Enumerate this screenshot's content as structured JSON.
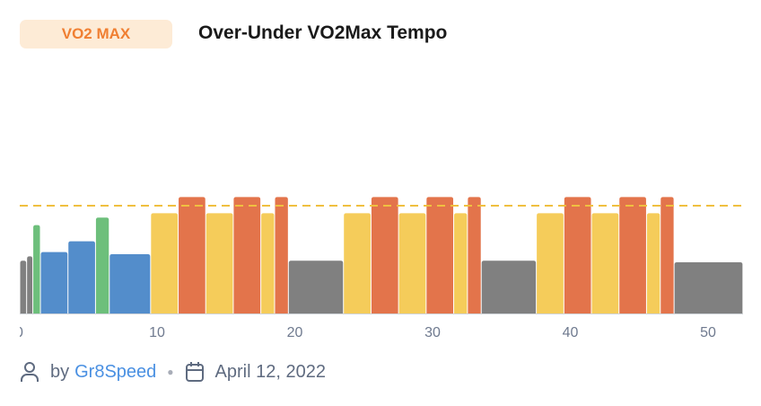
{
  "badge": "VO2 MAX",
  "title": "Over-Under VO2Max Tempo",
  "footer": {
    "by": "by",
    "author": "Gr8Speed",
    "date": "April 12, 2022",
    "icons": [
      "user-icon",
      "calendar-icon"
    ]
  },
  "colors": {
    "badge_bg": "#fdebd6",
    "badge_text": "#f07f32",
    "link": "#4a90e2",
    "threshold": "#f0c040"
  },
  "chart_data": {
    "type": "bar",
    "xlim": [
      0,
      52.5
    ],
    "ylim": [
      0,
      115
    ],
    "threshold": 100,
    "xticks": [
      "0",
      "10",
      "20",
      "30",
      "40",
      "50"
    ],
    "xtick_values": [
      0,
      10,
      20,
      30,
      40,
      50
    ],
    "colors": {
      "gray": "#808080",
      "green": "#6dbf7b",
      "blue": "#538dcb",
      "yellow": "#f5cc5a",
      "red": "#e3744b"
    },
    "segments": [
      {
        "start": 0,
        "end": 0.5,
        "value": 49,
        "color": "gray"
      },
      {
        "start": 0.5,
        "end": 0.95,
        "value": 53,
        "color": "gray"
      },
      {
        "start": 0.95,
        "end": 1.5,
        "value": 82,
        "color": "green"
      },
      {
        "start": 1.5,
        "end": 3.5,
        "value": 57,
        "color": "blue"
      },
      {
        "start": 3.5,
        "end": 5.5,
        "value": 67,
        "color": "blue"
      },
      {
        "start": 5.5,
        "end": 6.5,
        "value": 89,
        "color": "green"
      },
      {
        "start": 6.5,
        "end": 9.5,
        "value": 55,
        "color": "blue"
      },
      {
        "start": 9.5,
        "end": 11.5,
        "value": 93,
        "color": "yellow"
      },
      {
        "start": 11.5,
        "end": 13.5,
        "value": 108,
        "color": "red"
      },
      {
        "start": 13.5,
        "end": 15.5,
        "value": 93,
        "color": "yellow"
      },
      {
        "start": 15.5,
        "end": 17.5,
        "value": 108,
        "color": "red"
      },
      {
        "start": 17.5,
        "end": 18.5,
        "value": 93,
        "color": "yellow"
      },
      {
        "start": 18.5,
        "end": 19.5,
        "value": 108,
        "color": "red"
      },
      {
        "start": 19.5,
        "end": 23.5,
        "value": 49,
        "color": "gray"
      },
      {
        "start": 23.5,
        "end": 25.5,
        "value": 93,
        "color": "yellow"
      },
      {
        "start": 25.5,
        "end": 27.5,
        "value": 108,
        "color": "red"
      },
      {
        "start": 27.5,
        "end": 29.5,
        "value": 93,
        "color": "yellow"
      },
      {
        "start": 29.5,
        "end": 31.5,
        "value": 108,
        "color": "red"
      },
      {
        "start": 31.5,
        "end": 32.5,
        "value": 93,
        "color": "yellow"
      },
      {
        "start": 32.5,
        "end": 33.5,
        "value": 108,
        "color": "red"
      },
      {
        "start": 33.5,
        "end": 37.5,
        "value": 49,
        "color": "gray"
      },
      {
        "start": 37.5,
        "end": 39.5,
        "value": 93,
        "color": "yellow"
      },
      {
        "start": 39.5,
        "end": 41.5,
        "value": 108,
        "color": "red"
      },
      {
        "start": 41.5,
        "end": 43.5,
        "value": 93,
        "color": "yellow"
      },
      {
        "start": 43.5,
        "end": 45.5,
        "value": 108,
        "color": "red"
      },
      {
        "start": 45.5,
        "end": 46.5,
        "value": 93,
        "color": "yellow"
      },
      {
        "start": 46.5,
        "end": 47.5,
        "value": 108,
        "color": "red"
      },
      {
        "start": 47.5,
        "end": 52.5,
        "value": 47.5,
        "color": "gray"
      }
    ]
  }
}
